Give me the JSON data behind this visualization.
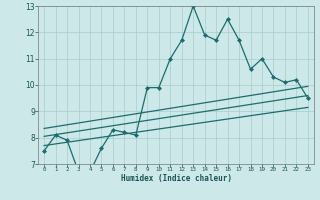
{
  "xlabel": "Humidex (Indice chaleur)",
  "bg_color": "#cce8e8",
  "grid_color": "#aacccc",
  "line_color": "#1a6e6e",
  "xlim": [
    -0.5,
    23.5
  ],
  "ylim": [
    7,
    13
  ],
  "xticks": [
    0,
    1,
    2,
    3,
    4,
    5,
    6,
    7,
    8,
    9,
    10,
    11,
    12,
    13,
    14,
    15,
    16,
    17,
    18,
    19,
    20,
    21,
    22,
    23
  ],
  "yticks": [
    7,
    8,
    9,
    10,
    11,
    12,
    13
  ],
  "main_line_x": [
    0,
    1,
    2,
    3,
    4,
    5,
    6,
    7,
    8,
    9,
    10,
    11,
    12,
    13,
    14,
    15,
    16,
    17,
    18,
    19,
    20,
    21,
    22,
    23
  ],
  "main_line_y": [
    7.5,
    8.1,
    7.9,
    6.7,
    6.7,
    7.6,
    8.3,
    8.2,
    8.1,
    9.9,
    9.9,
    11.0,
    11.7,
    13.0,
    11.9,
    11.7,
    12.5,
    11.7,
    10.6,
    11.0,
    10.3,
    10.1,
    10.2,
    9.5
  ],
  "reg_line1_x": [
    0,
    23
  ],
  "reg_line1_y": [
    7.7,
    9.15
  ],
  "reg_line2_x": [
    0,
    23
  ],
  "reg_line2_y": [
    8.05,
    9.6
  ],
  "reg_line3_x": [
    0,
    23
  ],
  "reg_line3_y": [
    8.35,
    9.95
  ]
}
